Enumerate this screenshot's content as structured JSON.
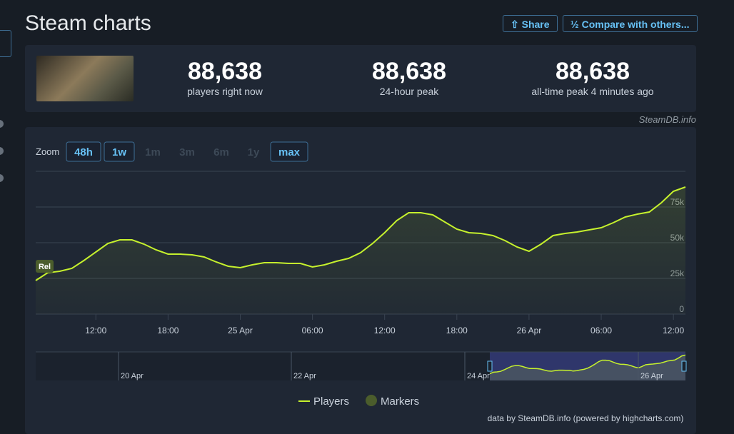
{
  "header": {
    "title": "Steam charts",
    "buttons": [
      "Share",
      "Compare with others..."
    ]
  },
  "stats": [
    {
      "value": "88,638",
      "label": "players right now"
    },
    {
      "value": "88,638",
      "label": "24-hour peak"
    },
    {
      "value": "88,638",
      "label": "all-time peak 4 minutes ago"
    }
  ],
  "source": "SteamDB.info",
  "zoom": {
    "label": "Zoom",
    "options": [
      "48h",
      "1w",
      "1m",
      "3m",
      "6m",
      "1y",
      "max"
    ]
  },
  "chart_data": {
    "type": "line",
    "categories": [
      null,
      null,
      null,
      null,
      null,
      "12:00",
      null,
      null,
      null,
      null,
      null,
      "18:00",
      null,
      null,
      null,
      null,
      null,
      "25 Apr",
      null,
      null,
      null,
      null,
      null,
      "06:00",
      null,
      null,
      null,
      null,
      null,
      "12:00",
      null,
      null,
      null,
      null,
      null,
      "18:00",
      null,
      null,
      null,
      null,
      null,
      "26 Apr",
      null,
      null,
      null,
      null,
      null,
      "06:00",
      null,
      null,
      null,
      null,
      null,
      "12:00",
      null
    ],
    "series": [
      {
        "name": "Players",
        "color": "#c6f12d",
        "values": [
          23500,
          29000,
          30000,
          32000,
          37500,
          43500,
          49500,
          52000,
          52000,
          49000,
          45000,
          42000,
          42000,
          41500,
          40000,
          36500,
          33500,
          32500,
          34500,
          36000,
          36000,
          35500,
          35500,
          33000,
          34500,
          37000,
          39000,
          43000,
          49500,
          57000,
          65500,
          71000,
          71000,
          69500,
          64500,
          59500,
          57000,
          56500,
          55000,
          51500,
          47000,
          44000,
          49000,
          55000,
          56500,
          57500,
          59000,
          60500,
          64000,
          68000,
          70000,
          71500,
          78000,
          86000,
          89000
        ]
      }
    ],
    "ylim": [
      0,
      100000
    ],
    "yticks": [
      0,
      {
        "value": 25000,
        "label": "25k"
      },
      {
        "value": 50000,
        "label": "50k"
      },
      {
        "value": 75000,
        "label": "75k"
      }
    ],
    "grid": true,
    "markers": {
      "name": "Markers",
      "color": "#4b5d2c",
      "labels": [
        "Rel"
      ]
    }
  },
  "navigator": {
    "labels": [
      "20 Apr",
      "22 Apr",
      "24 Apr",
      "26 Apr"
    ]
  },
  "credit": "data by SteamDB.info (powered by highcharts.com)"
}
